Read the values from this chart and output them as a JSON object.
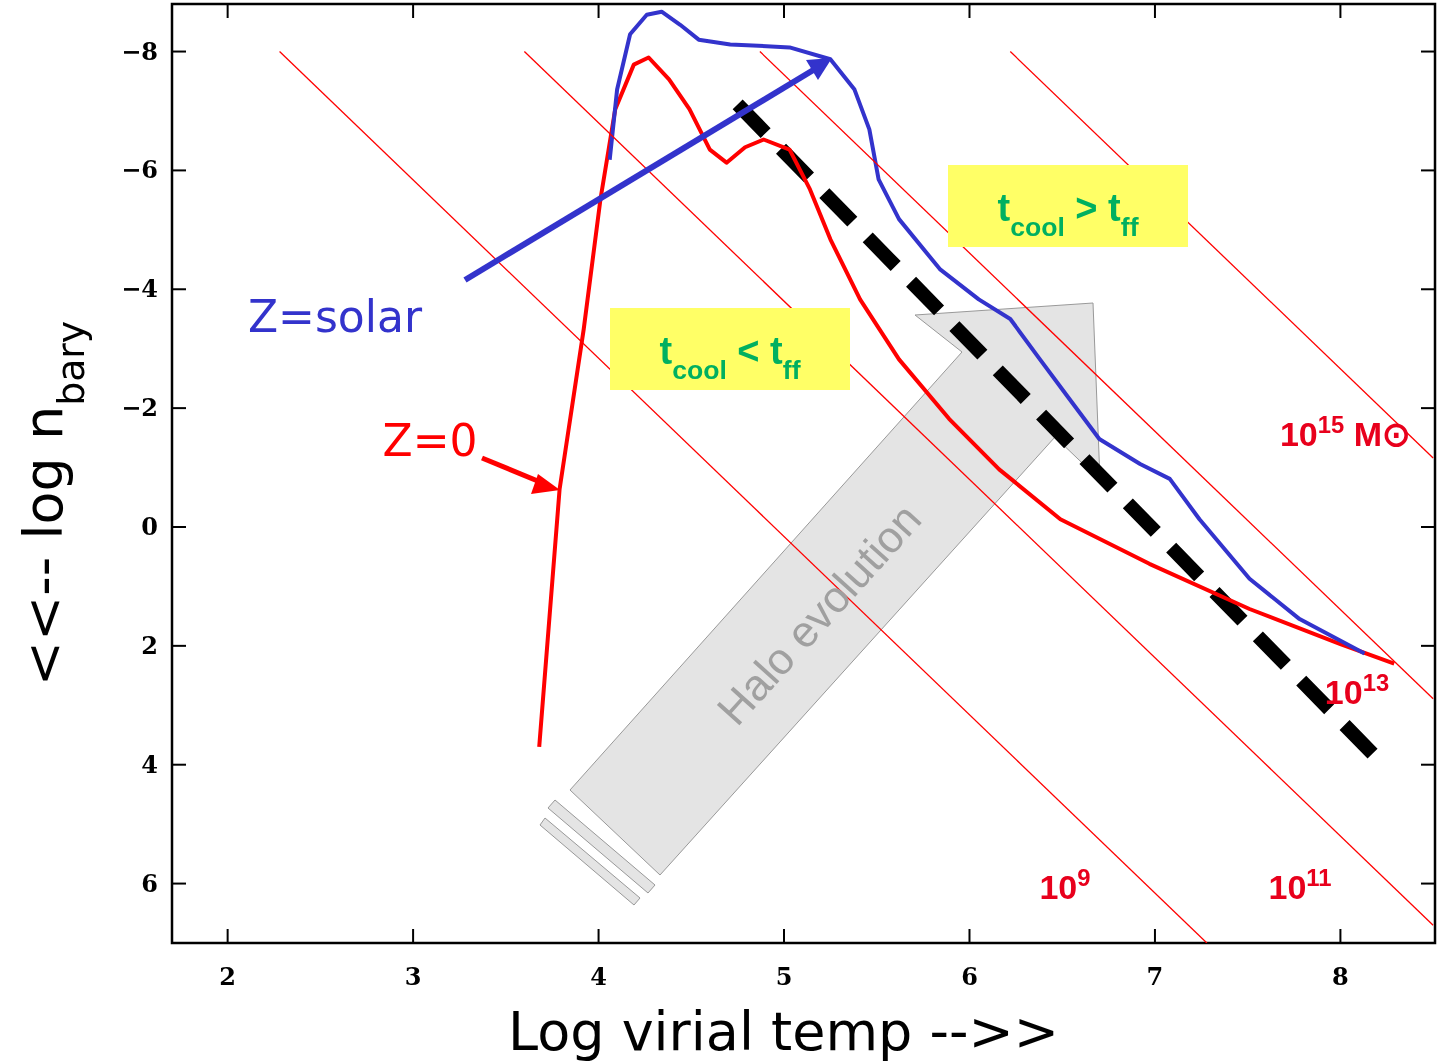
{
  "chart_data": {
    "type": "line",
    "xlabel": "Log virial temp -->>",
    "ylabel": "<<-- log n$_{bary}$",
    "xlim": [
      1.7,
      8.51
    ],
    "ylim": [
      7,
      -8.8
    ],
    "xticks": [
      2,
      3,
      4,
      5,
      6,
      7,
      8
    ],
    "yticks": [
      -8,
      -6,
      -4,
      -2,
      0,
      2,
      4,
      6
    ],
    "grid": false,
    "marker": "none",
    "series": [
      {
        "color": "#000000",
        "line_style": "dashed",
        "x": [
          4.75,
          8.21
        ],
        "values": [
          -7.11,
          3.93
        ]
      },
      {
        "color": "#ff0000",
        "x": [
          3.68,
          3.79,
          3.92,
          4.01,
          4.09,
          4.19,
          4.27,
          4.38,
          4.49,
          4.6,
          4.69,
          4.79,
          4.89,
          5.03,
          5.14,
          5.25,
          5.41,
          5.62,
          5.89,
          6.16,
          6.49,
          6.97,
          7.51,
          8.0,
          8.29
        ],
        "values": [
          3.7,
          -0.64,
          -3.33,
          -5.51,
          -7.03,
          -7.78,
          -7.9,
          -7.53,
          -7.03,
          -6.35,
          -6.13,
          -6.39,
          -6.52,
          -6.35,
          -5.68,
          -4.84,
          -3.83,
          -2.82,
          -1.82,
          -0.97,
          -0.13,
          0.62,
          1.38,
          1.97,
          2.3
        ]
      },
      {
        "color": "#3333cc",
        "x": [
          4.06,
          4.1,
          4.17,
          4.26,
          4.34,
          4.44,
          4.54,
          4.71,
          5.03,
          5.25,
          5.38,
          5.46,
          5.51,
          5.62,
          5.84,
          6.05,
          6.22,
          6.38,
          6.54,
          6.7,
          6.92,
          7.08,
          7.24,
          7.51,
          7.78,
          8.13
        ],
        "values": [
          -6.18,
          -7.36,
          -8.29,
          -8.62,
          -8.67,
          -8.45,
          -8.2,
          -8.12,
          -8.07,
          -7.87,
          -7.36,
          -6.69,
          -5.85,
          -5.18,
          -4.34,
          -3.83,
          -3.5,
          -2.82,
          -2.15,
          -1.48,
          -1.06,
          -0.81,
          -0.13,
          0.87,
          1.55,
          2.13
        ]
      },
      {
        "color": "#ff0000",
        "x": [
          2.28,
          7.28
        ],
        "values": [
          -8,
          7
        ]
      },
      {
        "color": "#ff0000",
        "x": [
          3.6,
          8.5
        ],
        "values": [
          -8,
          6.7
        ]
      },
      {
        "color": "#ff0000",
        "x": [
          4.87,
          8.5
        ],
        "values": [
          -8,
          2.89
        ]
      },
      {
        "color": "#ff0000",
        "x": [
          6.22,
          8.5
        ],
        "values": [
          -8,
          -1.16
        ]
      }
    ],
    "annotations": [
      "Z=solar",
      "Z=0",
      "t$_{cool}$ < t$_{ff}$",
      "t$_{cool}$ > t$_{ff}$",
      "Halo evolution",
      "10$^{9}$",
      "10$^{11}$",
      "10$^{13}$",
      "10$^{15}$ M⊙"
    ]
  }
}
